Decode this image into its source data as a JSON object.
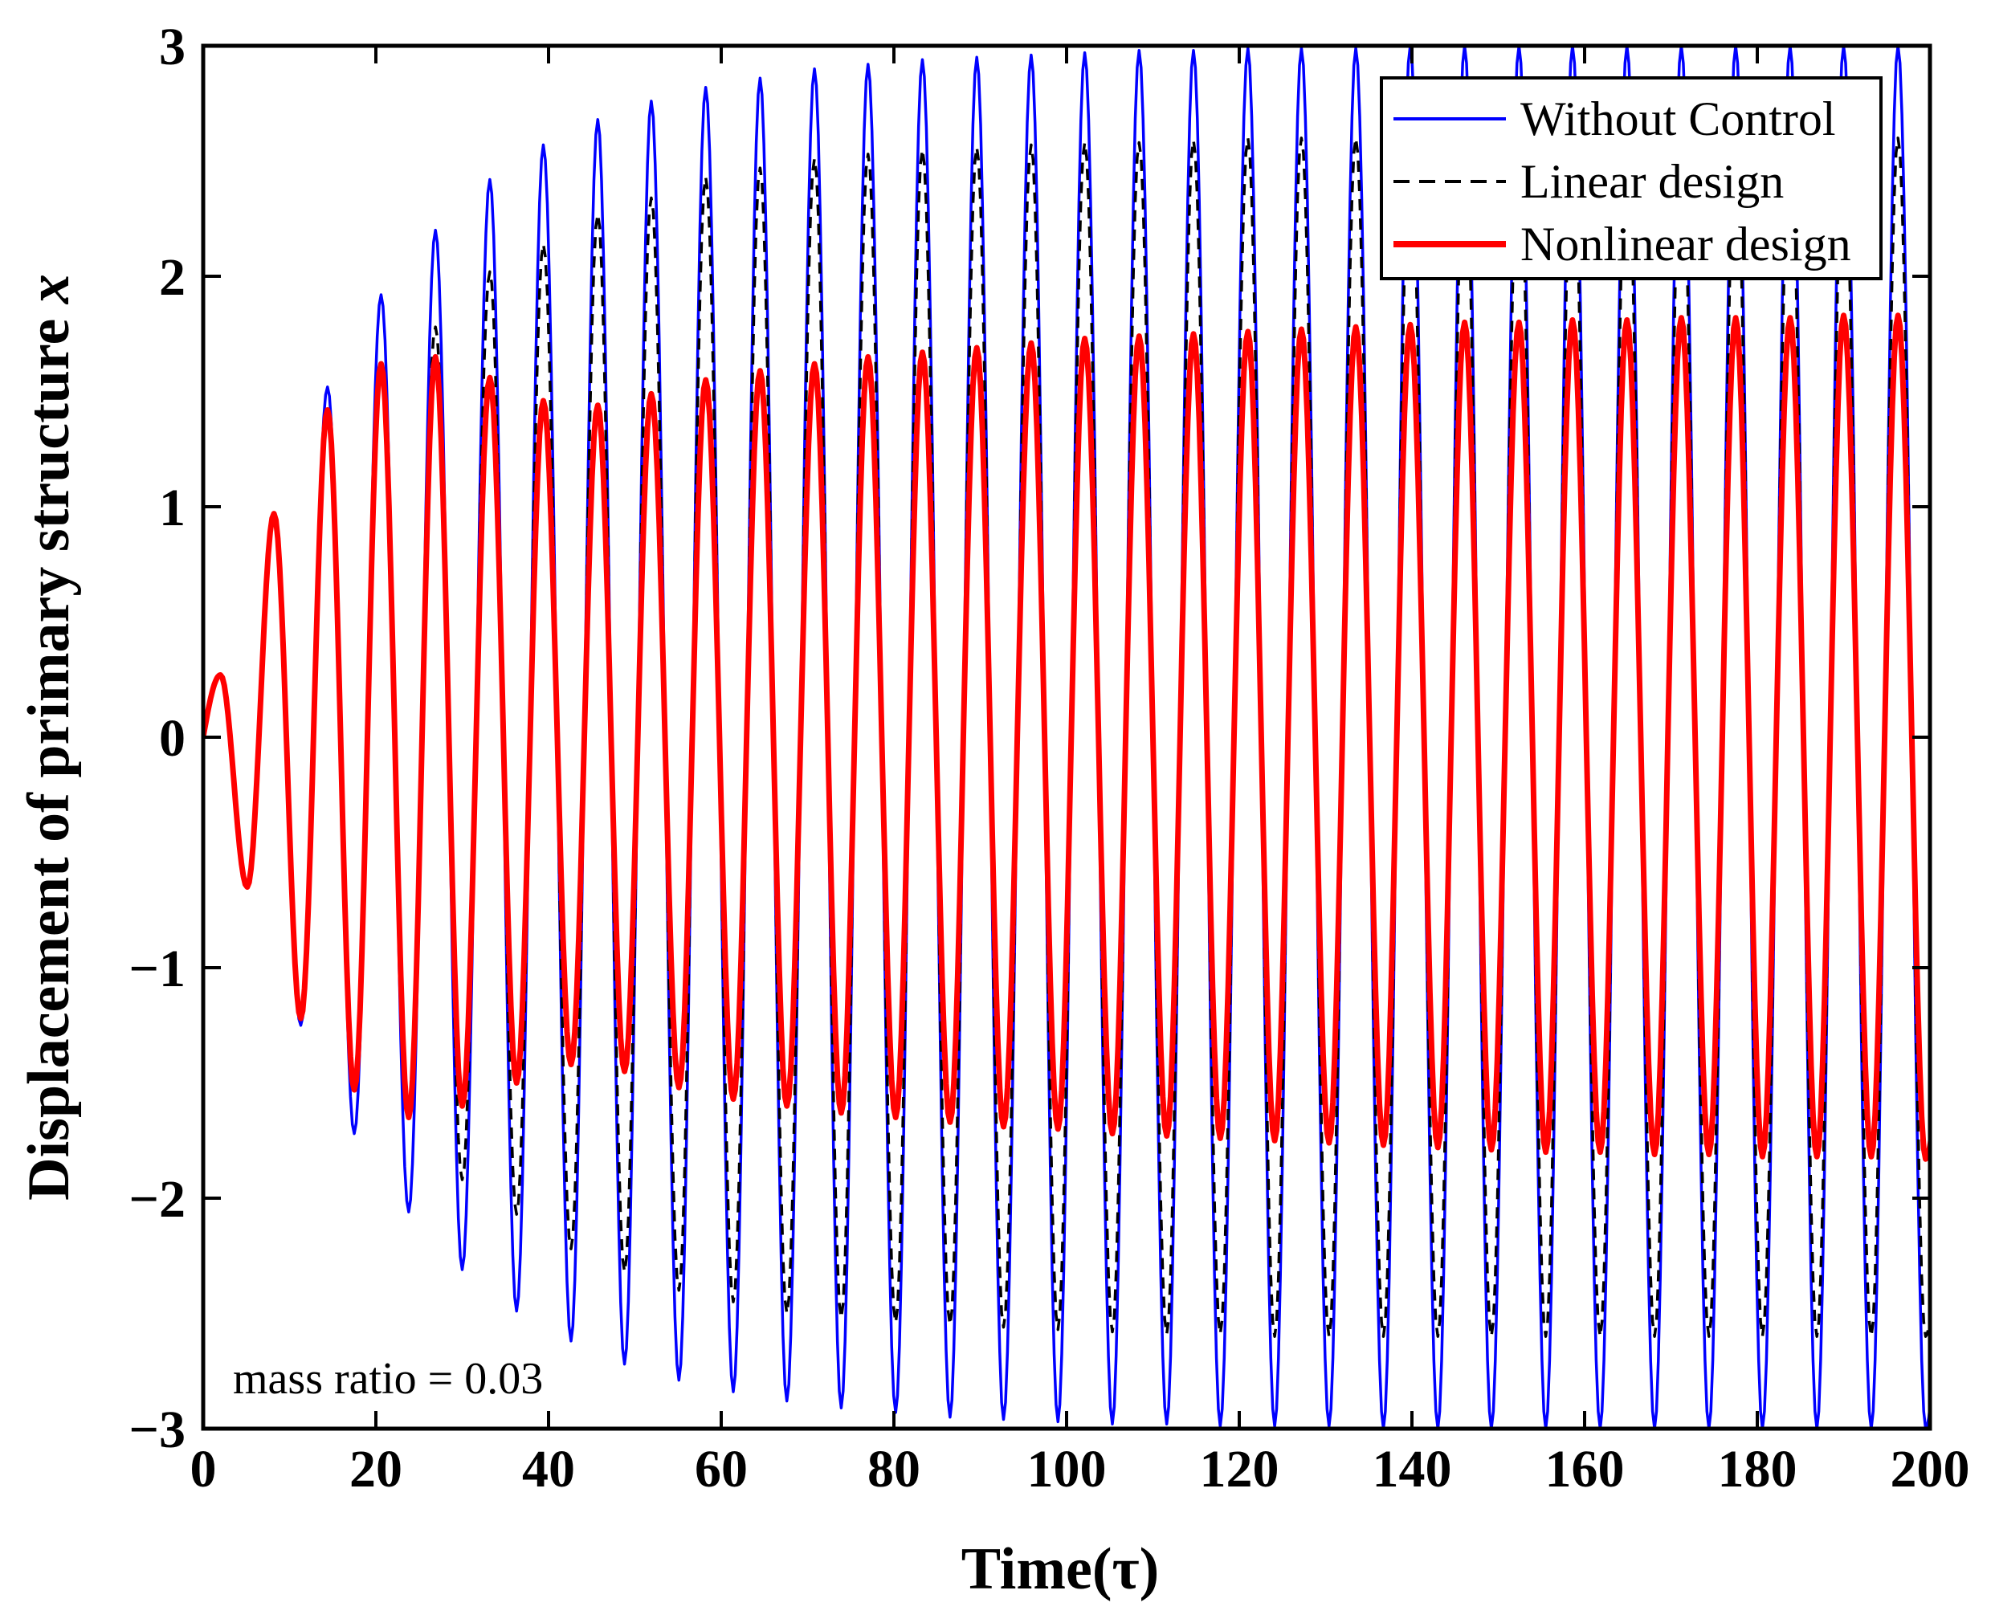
{
  "chart_data": {
    "type": "line",
    "title": "",
    "xlabel": "Time(τ)",
    "ylabel_main": "Displacement of primary structure ",
    "ylabel_var": "x",
    "xlim": [
      0,
      200
    ],
    "ylim": [
      -3,
      3
    ],
    "xticks": [
      0,
      20,
      40,
      60,
      80,
      100,
      120,
      140,
      160,
      180,
      200
    ],
    "yticks": [
      -3,
      -2,
      -1,
      0,
      1,
      2,
      3
    ],
    "ytick_labels": [
      "−3",
      "−2",
      "−1",
      "0",
      "1",
      "2",
      "3"
    ],
    "grid": false,
    "legend_position": "top-right",
    "annotation": "mass ratio = 0.03",
    "forcing_period": 6.28,
    "series": [
      {
        "name": "Without Control",
        "color": "#0000ff",
        "style": "solid",
        "peaks": [
          [
            2.0,
            0.27
          ],
          [
            8.2,
            0.97
          ],
          [
            14.4,
            1.52
          ],
          [
            20.6,
            1.92
          ],
          [
            26.9,
            2.2
          ],
          [
            33.2,
            2.42
          ],
          [
            39.4,
            2.57
          ],
          [
            45.7,
            2.68
          ],
          [
            51.9,
            2.76
          ],
          [
            58.2,
            2.82
          ],
          [
            64.5,
            2.86
          ],
          [
            70.8,
            2.9
          ],
          [
            77.0,
            2.92
          ],
          [
            83.3,
            2.94
          ],
          [
            89.6,
            2.95
          ],
          [
            95.9,
            2.96
          ],
          [
            102.1,
            2.97
          ],
          [
            108.4,
            2.98
          ],
          [
            114.7,
            2.98
          ],
          [
            121.0,
            2.99
          ],
          [
            127.2,
            2.99
          ],
          [
            133.5,
            2.99
          ],
          [
            139.8,
            3.0
          ],
          [
            146.1,
            3.0
          ],
          [
            152.4,
            3.0
          ],
          [
            158.6,
            3.0
          ],
          [
            164.9,
            3.0
          ],
          [
            171.2,
            3.0
          ],
          [
            177.5,
            3.0
          ],
          [
            183.8,
            3.0
          ],
          [
            190.0,
            3.0
          ],
          [
            196.3,
            3.0
          ]
        ],
        "troughs": [
          [
            5.1,
            -0.65
          ],
          [
            11.3,
            -1.25
          ],
          [
            17.5,
            -1.72
          ],
          [
            23.8,
            -2.06
          ],
          [
            30.0,
            -2.31
          ],
          [
            36.3,
            -2.49
          ],
          [
            42.6,
            -2.62
          ],
          [
            48.8,
            -2.72
          ],
          [
            55.1,
            -2.79
          ],
          [
            61.4,
            -2.84
          ],
          [
            67.6,
            -2.88
          ],
          [
            73.9,
            -2.91
          ],
          [
            80.2,
            -2.93
          ],
          [
            86.5,
            -2.95
          ],
          [
            92.7,
            -2.96
          ],
          [
            99.0,
            -2.97
          ],
          [
            105.3,
            -2.98
          ],
          [
            111.6,
            -2.98
          ],
          [
            117.8,
            -2.99
          ],
          [
            124.1,
            -2.99
          ],
          [
            130.4,
            -2.99
          ],
          [
            136.7,
            -3.0
          ],
          [
            143.0,
            -3.0
          ],
          [
            149.2,
            -3.0
          ],
          [
            155.5,
            -3.0
          ],
          [
            161.8,
            -3.0
          ],
          [
            168.1,
            -3.0
          ],
          [
            174.4,
            -3.0
          ],
          [
            180.6,
            -3.0
          ],
          [
            186.9,
            -3.0
          ],
          [
            193.2,
            -3.0
          ],
          [
            199.5,
            -3.0
          ]
        ]
      },
      {
        "name": "Linear design",
        "color": "#000000",
        "style": "dashed",
        "peaks": [
          [
            2.0,
            0.27
          ],
          [
            8.2,
            0.97
          ],
          [
            14.4,
            1.42
          ],
          [
            20.6,
            1.62
          ],
          [
            26.9,
            1.78
          ],
          [
            33.2,
            2.02
          ],
          [
            39.4,
            2.14
          ],
          [
            45.7,
            2.27
          ],
          [
            51.9,
            2.34
          ],
          [
            58.2,
            2.43
          ],
          [
            64.5,
            2.47
          ],
          [
            70.8,
            2.51
          ],
          [
            77.0,
            2.53
          ],
          [
            83.3,
            2.55
          ],
          [
            89.6,
            2.56
          ],
          [
            95.9,
            2.57
          ],
          [
            102.1,
            2.58
          ],
          [
            108.4,
            2.58
          ],
          [
            114.7,
            2.59
          ],
          [
            121.0,
            2.6
          ],
          [
            127.2,
            2.6
          ],
          [
            133.5,
            2.6
          ],
          [
            139.8,
            2.6
          ],
          [
            146.1,
            2.6
          ],
          [
            152.4,
            2.6
          ],
          [
            158.6,
            2.6
          ],
          [
            164.9,
            2.6
          ],
          [
            171.2,
            2.6
          ],
          [
            177.5,
            2.6
          ],
          [
            183.8,
            2.6
          ],
          [
            190.0,
            2.6
          ],
          [
            196.3,
            2.6
          ]
        ],
        "troughs": [
          [
            5.1,
            -0.65
          ],
          [
            11.3,
            -1.22
          ],
          [
            17.5,
            -1.52
          ],
          [
            23.8,
            -1.62
          ],
          [
            30.0,
            -1.92
          ],
          [
            36.3,
            -2.07
          ],
          [
            42.6,
            -2.22
          ],
          [
            48.8,
            -2.32
          ],
          [
            55.1,
            -2.4
          ],
          [
            61.4,
            -2.45
          ],
          [
            67.6,
            -2.5
          ],
          [
            73.9,
            -2.52
          ],
          [
            80.2,
            -2.54
          ],
          [
            86.5,
            -2.55
          ],
          [
            92.7,
            -2.56
          ],
          [
            99.0,
            -2.57
          ],
          [
            105.3,
            -2.58
          ],
          [
            111.6,
            -2.59
          ],
          [
            117.8,
            -2.59
          ],
          [
            124.1,
            -2.6
          ],
          [
            130.4,
            -2.6
          ],
          [
            136.7,
            -2.6
          ],
          [
            143.0,
            -2.6
          ],
          [
            149.2,
            -2.6
          ],
          [
            155.5,
            -2.6
          ],
          [
            161.8,
            -2.6
          ],
          [
            168.1,
            -2.6
          ],
          [
            174.4,
            -2.6
          ],
          [
            180.6,
            -2.6
          ],
          [
            186.9,
            -2.6
          ],
          [
            193.2,
            -2.6
          ],
          [
            199.5,
            -2.6
          ]
        ]
      },
      {
        "name": "Nonlinear design",
        "color": "#ff0000",
        "style": "solid",
        "peaks": [
          [
            2.0,
            0.27
          ],
          [
            8.2,
            0.97
          ],
          [
            14.4,
            1.42
          ],
          [
            20.6,
            1.62
          ],
          [
            26.9,
            1.65
          ],
          [
            33.2,
            1.56
          ],
          [
            39.4,
            1.46
          ],
          [
            45.7,
            1.44
          ],
          [
            51.9,
            1.49
          ],
          [
            58.2,
            1.55
          ],
          [
            64.5,
            1.59
          ],
          [
            70.8,
            1.62
          ],
          [
            77.0,
            1.65
          ],
          [
            83.3,
            1.67
          ],
          [
            89.6,
            1.69
          ],
          [
            95.9,
            1.71
          ],
          [
            102.1,
            1.73
          ],
          [
            108.4,
            1.74
          ],
          [
            114.7,
            1.75
          ],
          [
            121.0,
            1.76
          ],
          [
            127.2,
            1.77
          ],
          [
            133.5,
            1.78
          ],
          [
            139.8,
            1.79
          ],
          [
            146.1,
            1.8
          ],
          [
            152.4,
            1.8
          ],
          [
            158.6,
            1.81
          ],
          [
            164.9,
            1.81
          ],
          [
            171.2,
            1.82
          ],
          [
            177.5,
            1.82
          ],
          [
            183.8,
            1.82
          ],
          [
            190.0,
            1.83
          ],
          [
            196.3,
            1.83
          ]
        ],
        "troughs": [
          [
            5.1,
            -0.65
          ],
          [
            11.3,
            -1.22
          ],
          [
            17.5,
            -1.53
          ],
          [
            23.8,
            -1.65
          ],
          [
            30.0,
            -1.6
          ],
          [
            36.3,
            -1.5
          ],
          [
            42.6,
            -1.42
          ],
          [
            48.8,
            -1.45
          ],
          [
            55.1,
            -1.52
          ],
          [
            61.4,
            -1.57
          ],
          [
            67.6,
            -1.6
          ],
          [
            73.9,
            -1.63
          ],
          [
            80.2,
            -1.65
          ],
          [
            86.5,
            -1.67
          ],
          [
            92.7,
            -1.69
          ],
          [
            99.0,
            -1.7
          ],
          [
            105.3,
            -1.72
          ],
          [
            111.6,
            -1.73
          ],
          [
            117.8,
            -1.74
          ],
          [
            124.1,
            -1.75
          ],
          [
            130.4,
            -1.76
          ],
          [
            136.7,
            -1.77
          ],
          [
            143.0,
            -1.78
          ],
          [
            149.2,
            -1.79
          ],
          [
            155.5,
            -1.8
          ],
          [
            161.8,
            -1.8
          ],
          [
            168.1,
            -1.81
          ],
          [
            174.4,
            -1.81
          ],
          [
            180.6,
            -1.82
          ],
          [
            186.9,
            -1.82
          ],
          [
            193.2,
            -1.82
          ],
          [
            199.5,
            -1.83
          ]
        ]
      }
    ]
  }
}
